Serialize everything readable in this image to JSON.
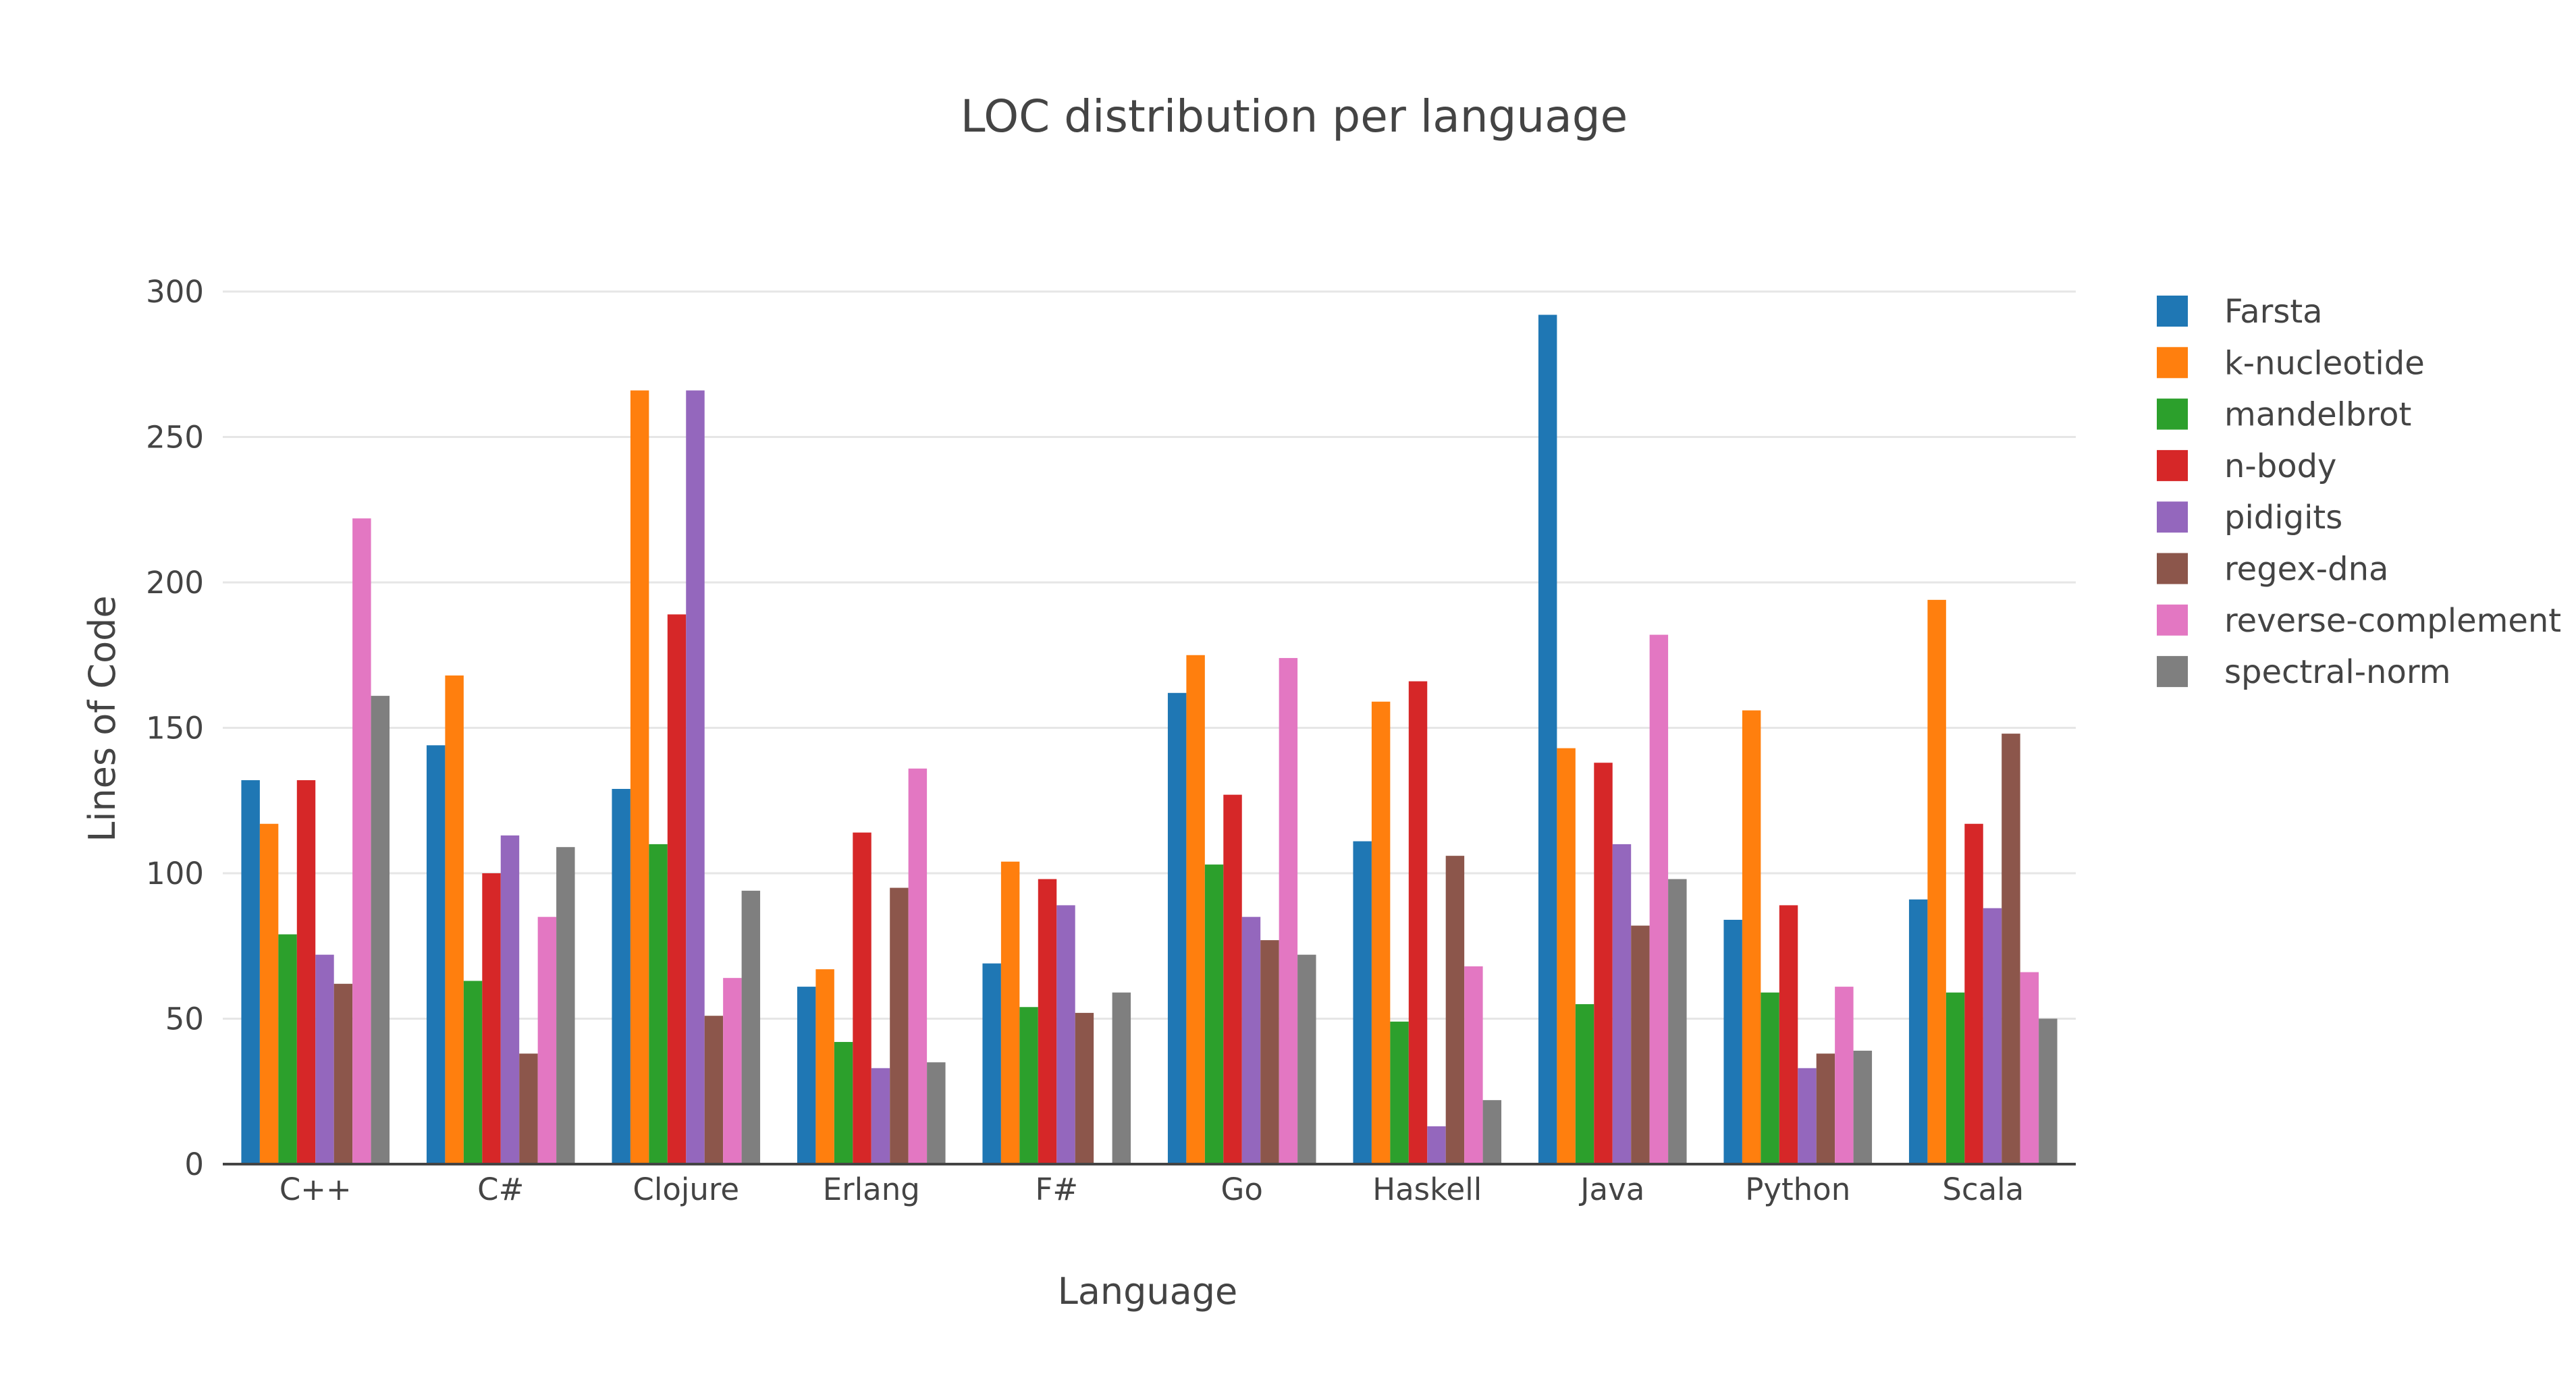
{
  "chart_data": {
    "type": "bar",
    "title": "LOC distribution per language",
    "xlabel": "Language",
    "ylabel": "Lines of Code",
    "ylim": [
      0,
      300
    ],
    "yticks": [
      0,
      50,
      100,
      150,
      200,
      250,
      300
    ],
    "grid": true,
    "legend_position": "right",
    "categories": [
      "C++",
      "C#",
      "Clojure",
      "Erlang",
      "F#",
      "Go",
      "Haskell",
      "Java",
      "Python",
      "Scala"
    ],
    "series": [
      {
        "name": "Farsta",
        "color": "#1f77b4",
        "values": [
          132,
          144,
          129,
          61,
          69,
          162,
          111,
          292,
          84,
          91
        ]
      },
      {
        "name": "k-nucleotide",
        "color": "#ff7f0e",
        "values": [
          117,
          168,
          266,
          67,
          104,
          175,
          159,
          143,
          156,
          194
        ]
      },
      {
        "name": "mandelbrot",
        "color": "#2ca02c",
        "values": [
          79,
          63,
          110,
          42,
          54,
          103,
          49,
          55,
          59,
          59
        ]
      },
      {
        "name": "n-body",
        "color": "#d62728",
        "values": [
          132,
          100,
          189,
          114,
          98,
          127,
          166,
          138,
          89,
          117
        ]
      },
      {
        "name": "pidigits",
        "color": "#9467bd",
        "values": [
          72,
          113,
          266,
          33,
          89,
          85,
          13,
          110,
          33,
          88
        ]
      },
      {
        "name": "regex-dna",
        "color": "#8c564b",
        "values": [
          62,
          38,
          51,
          95,
          52,
          77,
          106,
          82,
          38,
          148
        ]
      },
      {
        "name": "reverse-complement",
        "color": "#e377c2",
        "values": [
          222,
          85,
          64,
          136,
          null,
          174,
          68,
          182,
          61,
          66
        ]
      },
      {
        "name": "spectral-norm",
        "color": "#7f7f7f",
        "values": [
          161,
          109,
          94,
          35,
          59,
          72,
          22,
          98,
          39,
          50
        ]
      }
    ]
  }
}
